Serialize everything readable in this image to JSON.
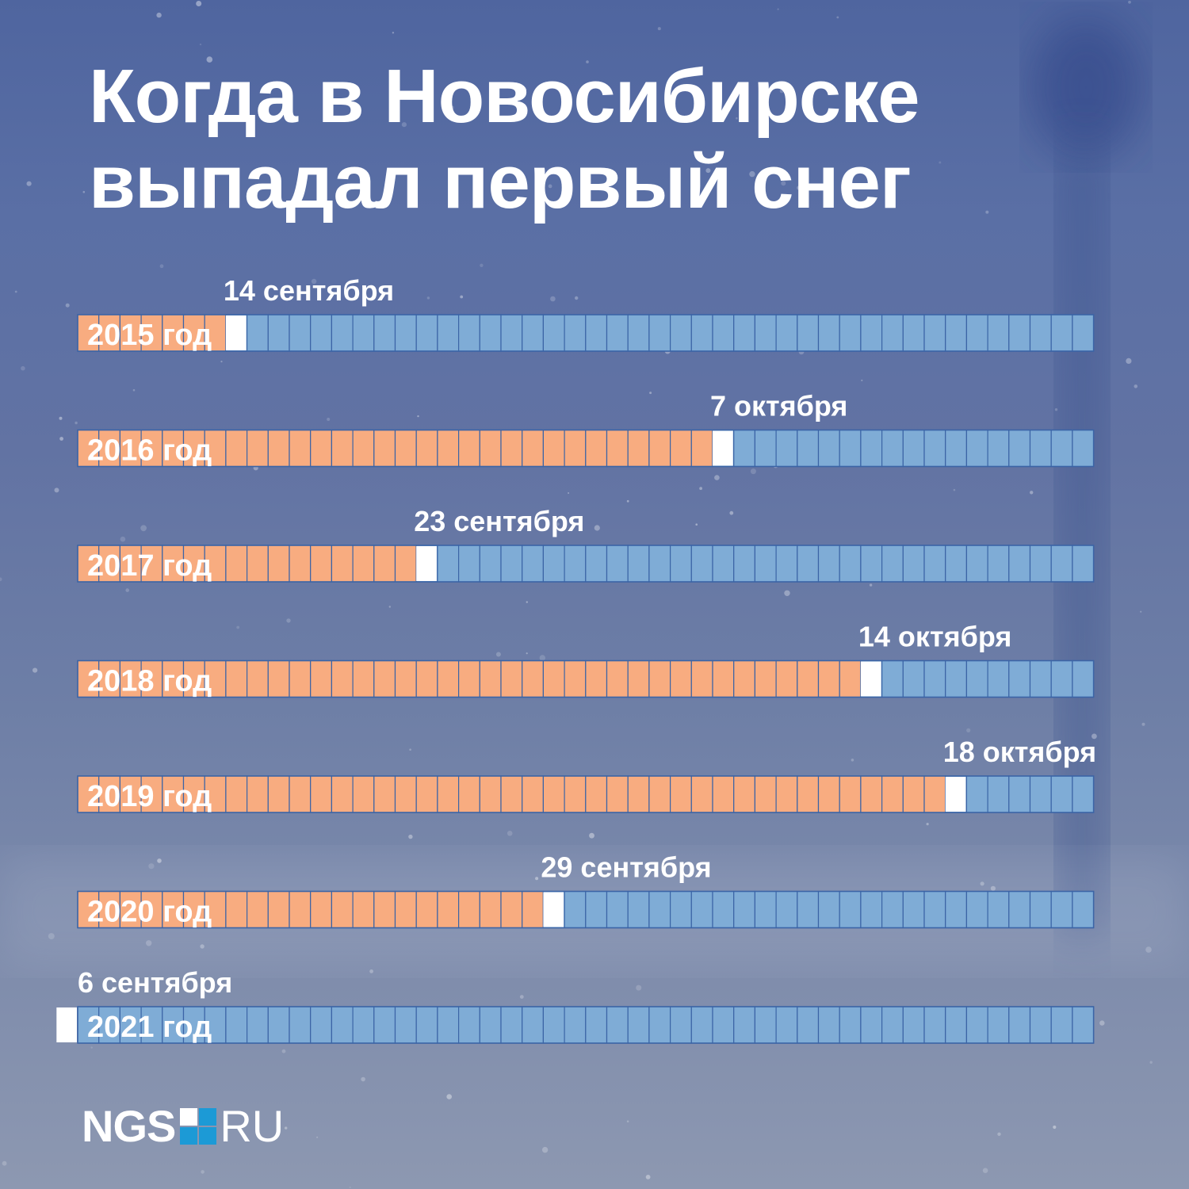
{
  "title": {
    "line1": "Когда в Новосибирске",
    "line2": "выпадал первый снег"
  },
  "colors": {
    "before_snow": "#f8ac80",
    "after_snow": "#7facd6",
    "first_snow": "#ffffff",
    "cell_border": "#3b64a6"
  },
  "chart_data": {
    "type": "bar",
    "title": "Когда в Новосибирске выпадал первый снег",
    "cells_per_row": 48,
    "series": [
      {
        "category": "2015 год",
        "first_snow_label": "14 сентября",
        "first_snow_date": "09-14"
      },
      {
        "category": "2016 год",
        "first_snow_label": "7 октября",
        "first_snow_date": "10-07"
      },
      {
        "category": "2017 год",
        "first_snow_label": "23 сентября",
        "first_snow_date": "09-23"
      },
      {
        "category": "2018 год",
        "first_snow_label": "14 октября",
        "first_snow_date": "10-14"
      },
      {
        "category": "2019 год",
        "first_snow_label": "18 октября",
        "first_snow_date": "10-18"
      },
      {
        "category": "2020 год",
        "first_snow_label": "29 сентября",
        "first_snow_date": "09-29"
      },
      {
        "category": "2021 год",
        "first_snow_label": "6 сентября",
        "first_snow_date": "09-06"
      }
    ]
  },
  "logo": {
    "brand": "NGS",
    "tld": "RU",
    "square_colors": [
      "#ffffff",
      "#1c9ad6",
      "#1c9ad6",
      "#1c9ad6"
    ]
  }
}
